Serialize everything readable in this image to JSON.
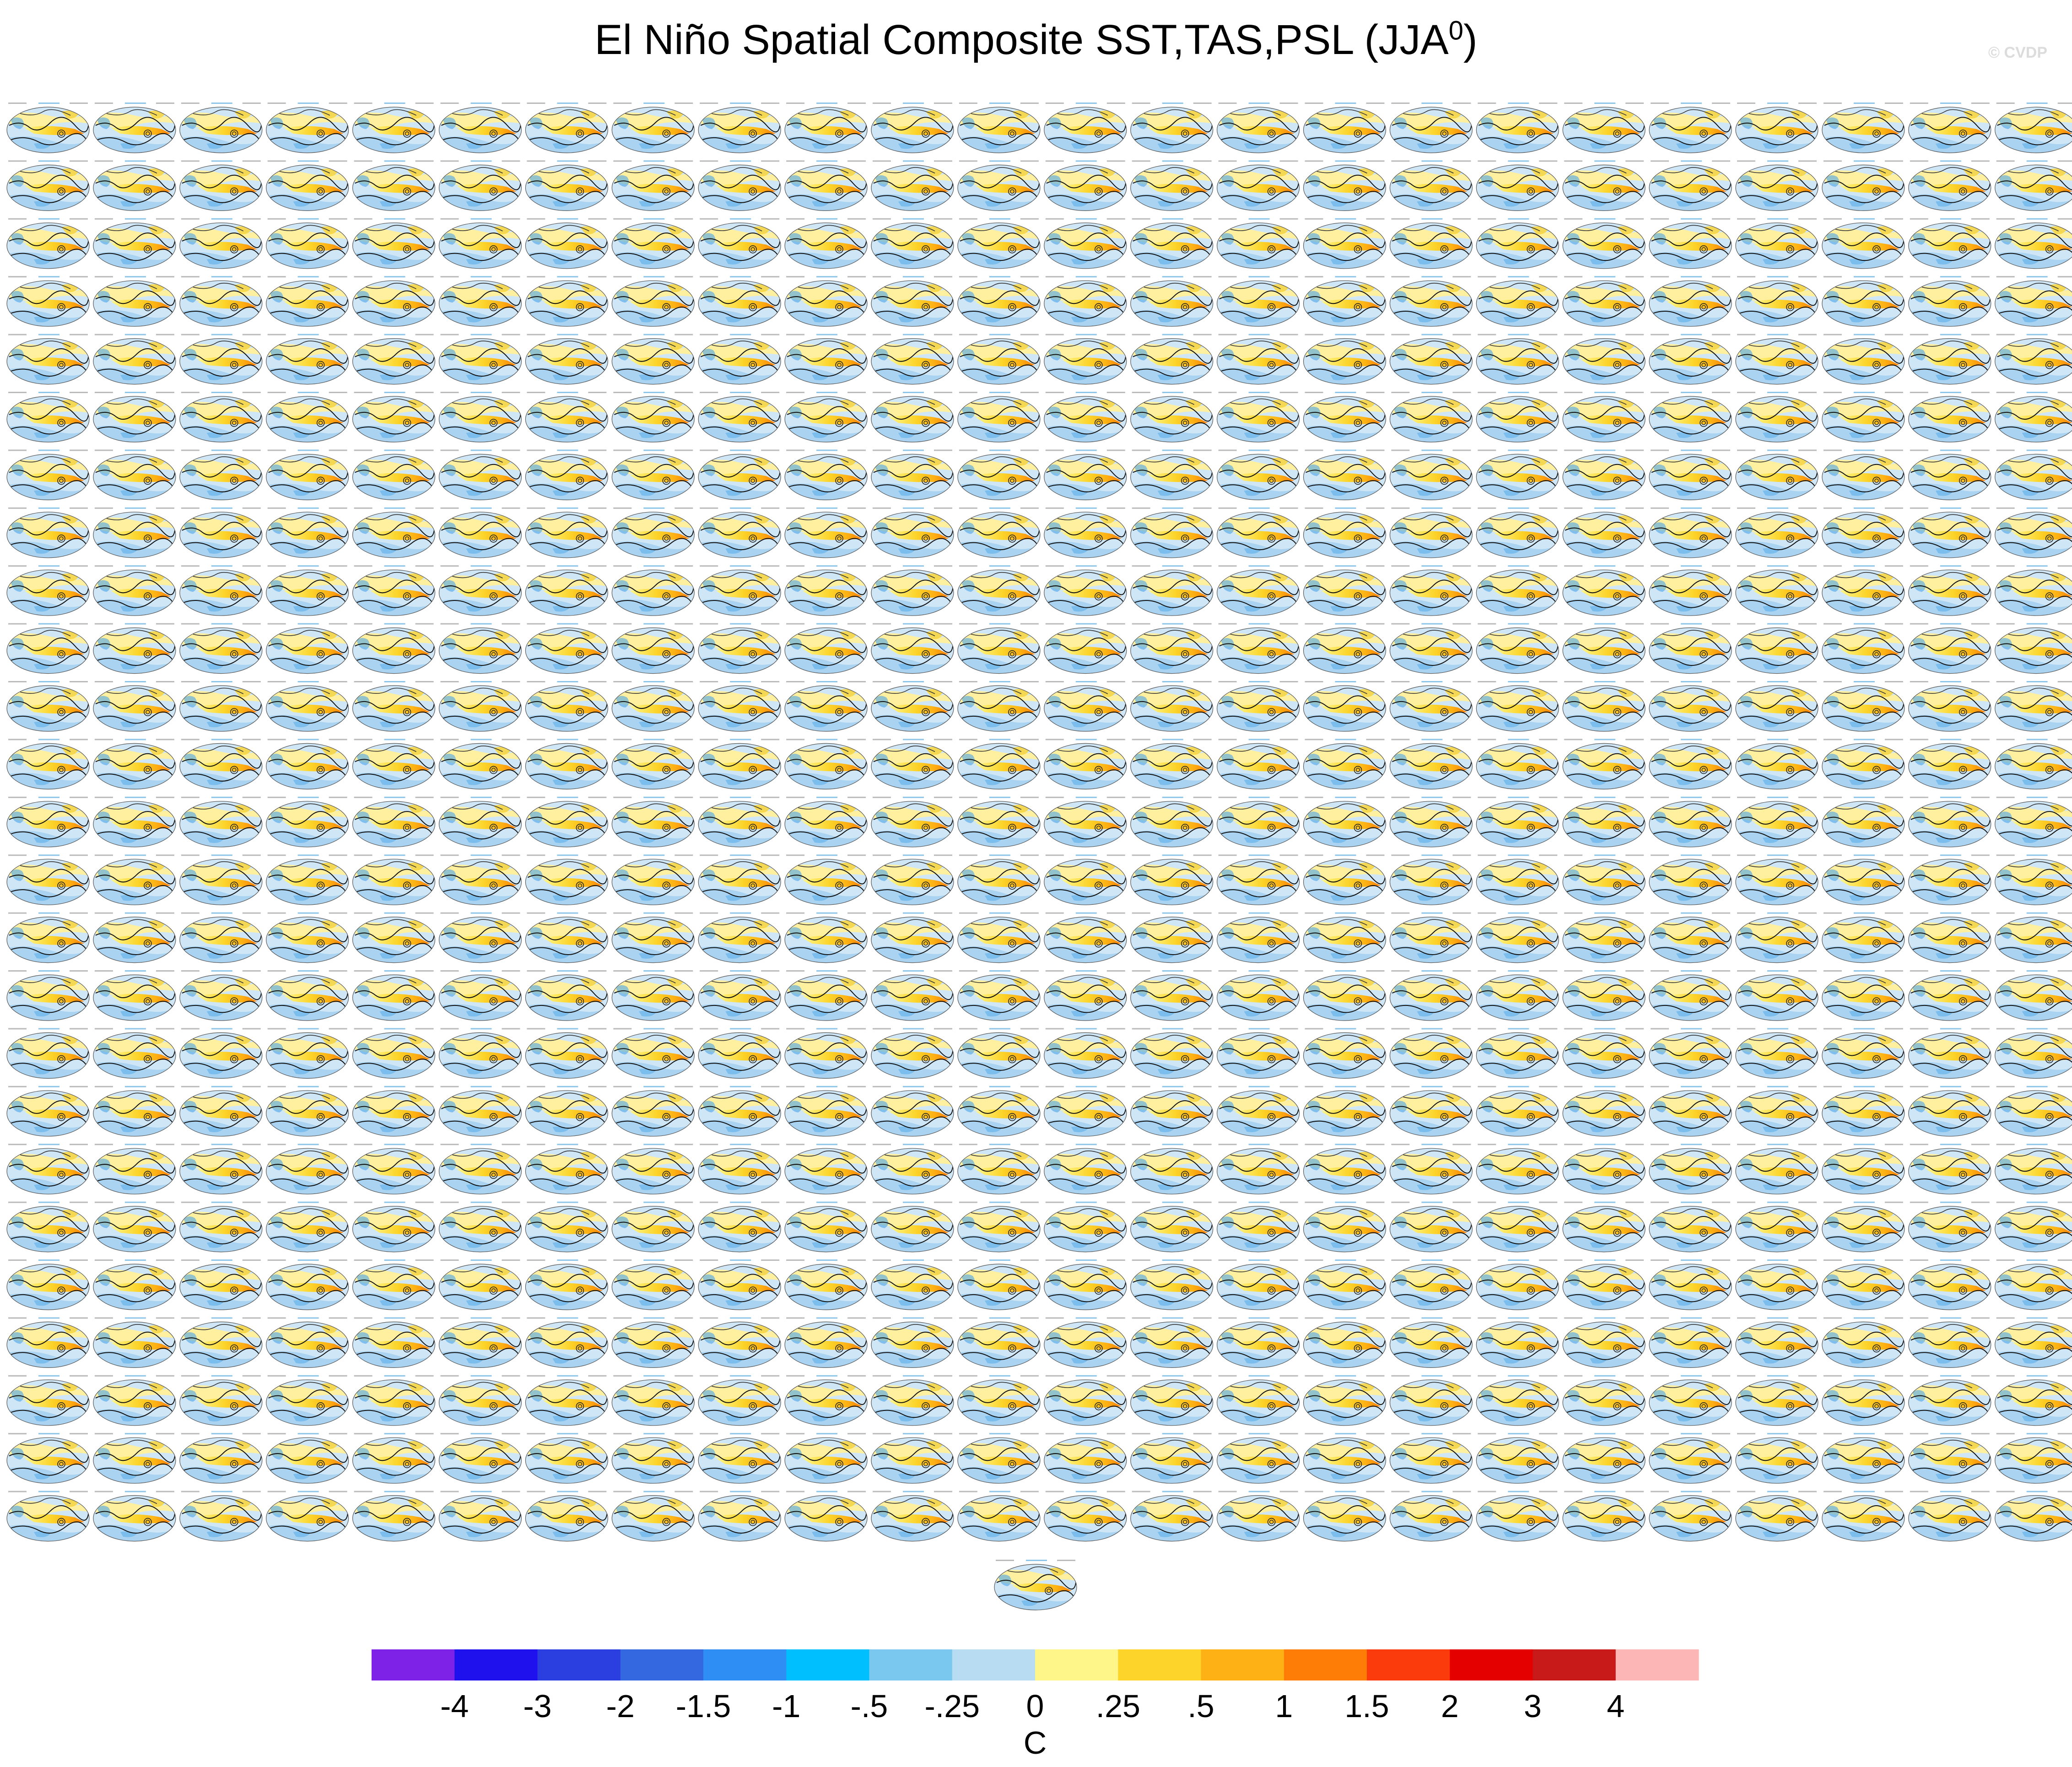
{
  "title": "El Niño Spatial Composite SST,TAS,PSL (JJA",
  "title_superscript": "0",
  "title_suffix": ")",
  "watermark": "© CVDP",
  "chart_data": {
    "type": "heatmap",
    "description_of_panels": "grid of global map panels",
    "panel_grid": {
      "rows": 25,
      "cols": 24,
      "extra_panels_bottom": 1
    },
    "colorbar": {
      "unit": "C",
      "tick_labels": [
        "-4",
        "-3",
        "-2",
        "-1.5",
        "-1",
        "-.5",
        "-.25",
        "0",
        ".25",
        ".5",
        "1",
        "1.5",
        "2",
        "3",
        "4"
      ],
      "colors": [
        "#7f22e8",
        "#1f10ee",
        "#2b3fe0",
        "#3468e0",
        "#2e8ef3",
        "#00bfff",
        "#7ac8f0",
        "#b8ddf2",
        "#fff68a",
        "#fcd42a",
        "#fdb114",
        "#fd7d07",
        "#fc3b0c",
        "#e50000",
        "#c91a1a",
        "#fdb6b6"
      ]
    }
  }
}
